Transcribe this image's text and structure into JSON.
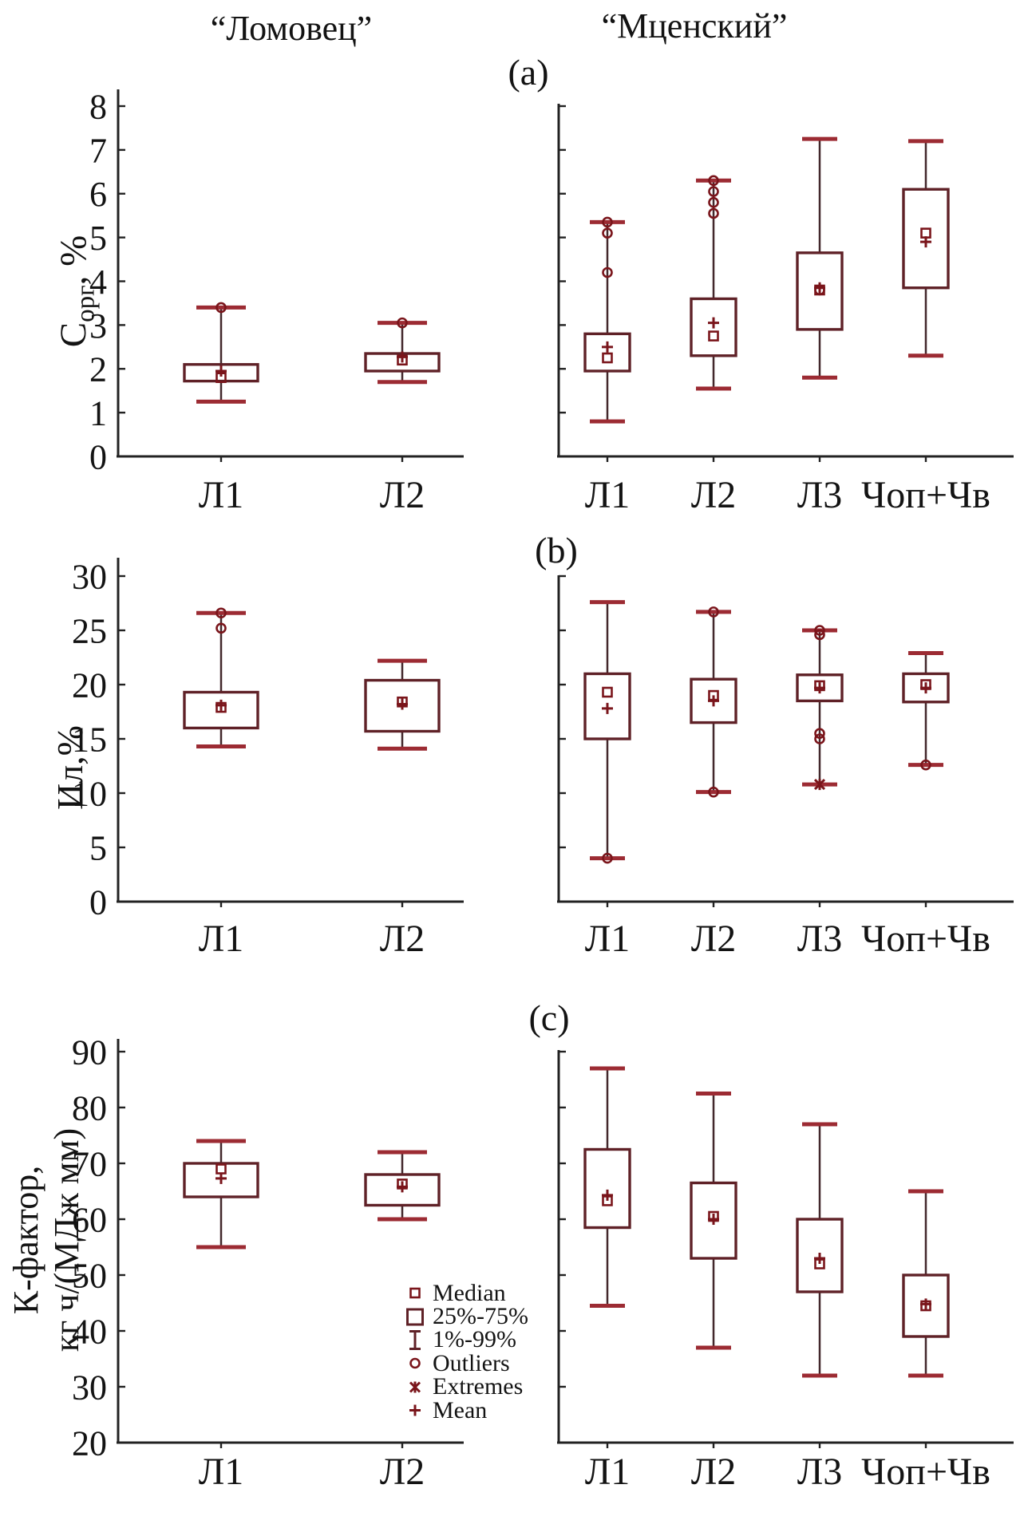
{
  "titles": {
    "left": "“Ломовец”",
    "right": "“Мценский”"
  },
  "colors": {
    "axis": "#222222",
    "text": "#131313",
    "box_outline": "#5f2127",
    "whisker": "#43282c",
    "cap": "#9c2b33",
    "marker": "#7a151b"
  },
  "legend": {
    "items": [
      {
        "marker": "median",
        "label": "Median"
      },
      {
        "marker": "box",
        "label": "25%-75%"
      },
      {
        "marker": "whisker",
        "label": "1%-99%"
      },
      {
        "marker": "outlier",
        "label": "Outliers"
      },
      {
        "marker": "extreme",
        "label": "Extremes"
      },
      {
        "marker": "mean",
        "label": "Mean"
      }
    ]
  },
  "chart_data": [
    {
      "panel": "a",
      "label": "(a)",
      "type": "box",
      "ylabel": {
        "prefix": "C",
        "sub": "орг",
        "suffix": ", %"
      },
      "ylim": [
        0,
        8
      ],
      "yticks": [
        0,
        1,
        2,
        3,
        4,
        5,
        6,
        7,
        8
      ],
      "groups": [
        {
          "name": "left",
          "farm": "Ломовец",
          "categories": [
            "Л1",
            "Л2"
          ],
          "boxes": [
            {
              "low": 1.25,
              "q1": 1.72,
              "median": 1.8,
              "mean": 1.95,
              "q3": 2.1,
              "high": 3.4,
              "outliers": [
                3.4
              ],
              "extremes": []
            },
            {
              "low": 1.7,
              "q1": 1.95,
              "median": 2.2,
              "mean": 2.27,
              "q3": 2.35,
              "high": 3.05,
              "outliers": [
                3.05
              ],
              "extremes": []
            }
          ]
        },
        {
          "name": "right",
          "farm": "Мценский",
          "categories": [
            "Л1",
            "Л2",
            "Л3",
            "Чоп+Чв"
          ],
          "boxes": [
            {
              "low": 0.8,
              "q1": 1.95,
              "median": 2.25,
              "mean": 2.5,
              "q3": 2.8,
              "high": 5.35,
              "outliers": [
                5.35,
                5.1,
                4.2
              ],
              "extremes": []
            },
            {
              "low": 1.55,
              "q1": 2.3,
              "median": 2.75,
              "mean": 3.05,
              "q3": 3.6,
              "high": 6.3,
              "outliers": [
                6.3,
                6.05,
                5.8,
                5.55
              ],
              "extremes": []
            },
            {
              "low": 1.8,
              "q1": 2.9,
              "median": 3.8,
              "mean": 3.85,
              "q3": 4.65,
              "high": 7.25,
              "outliers": [
                3.8
              ],
              "extremes": []
            },
            {
              "low": 2.3,
              "q1": 3.85,
              "median": 5.1,
              "mean": 4.9,
              "q3": 6.1,
              "high": 7.2,
              "outliers": [],
              "extremes": []
            }
          ]
        }
      ]
    },
    {
      "panel": "b",
      "label": "(b)",
      "type": "box",
      "ylabel": {
        "text": "Ил,%"
      },
      "ylim": [
        0,
        30
      ],
      "yticks": [
        0,
        5,
        10,
        15,
        20,
        25,
        30
      ],
      "groups": [
        {
          "name": "left",
          "farm": "Ломовец",
          "categories": [
            "Л1",
            "Л2"
          ],
          "boxes": [
            {
              "low": 14.3,
              "q1": 16.0,
              "median": 17.9,
              "mean": 18.1,
              "q3": 19.3,
              "high": 26.6,
              "outliers": [
                26.6,
                25.2
              ],
              "extremes": []
            },
            {
              "low": 14.1,
              "q1": 15.7,
              "median": 18.4,
              "mean": 18.2,
              "q3": 20.4,
              "high": 22.2,
              "outliers": [],
              "extremes": []
            }
          ]
        },
        {
          "name": "right",
          "farm": "Мценский",
          "categories": [
            "Л1",
            "Л2",
            "Л3",
            "Чоп+Чв"
          ],
          "boxes": [
            {
              "low": 4.0,
              "q1": 15.0,
              "median": 19.3,
              "mean": 17.8,
              "q3": 21.0,
              "high": 27.6,
              "outliers": [
                4.0
              ],
              "extremes": []
            },
            {
              "low": 10.1,
              "q1": 16.5,
              "median": 19.0,
              "mean": 18.5,
              "q3": 20.5,
              "high": 26.7,
              "outliers": [
                26.7,
                10.1
              ],
              "extremes": []
            },
            {
              "low": 10.8,
              "q1": 18.5,
              "median": 19.9,
              "mean": 19.7,
              "q3": 20.9,
              "high": 25.0,
              "outliers": [
                25.0,
                24.6,
                15.5,
                15.0
              ],
              "extremes": [
                10.8
              ]
            },
            {
              "low": 12.6,
              "q1": 18.4,
              "median": 20.0,
              "mean": 19.7,
              "q3": 21.0,
              "high": 22.9,
              "outliers": [
                12.6
              ],
              "extremes": []
            }
          ]
        }
      ]
    },
    {
      "panel": "c",
      "label": "(c)",
      "type": "box",
      "ylabel": {
        "line1": "К-фактор,",
        "line2": "кг ч/(МДж мм)"
      },
      "ylim": [
        20,
        90
      ],
      "yticks": [
        20,
        30,
        40,
        50,
        60,
        70,
        80,
        90
      ],
      "groups": [
        {
          "name": "left",
          "farm": "Ломовец",
          "categories": [
            "Л1",
            "Л2"
          ],
          "boxes": [
            {
              "low": 55,
              "q1": 64,
              "median": 69,
              "mean": 67.3,
              "q3": 70,
              "high": 74,
              "outliers": [],
              "extremes": []
            },
            {
              "low": 60,
              "q1": 62.5,
              "median": 66.3,
              "mean": 65.8,
              "q3": 68,
              "high": 72,
              "outliers": [],
              "extremes": []
            }
          ]
        },
        {
          "name": "right",
          "farm": "Мценский",
          "categories": [
            "Л1",
            "Л2",
            "Л3",
            "Чоп+Чв"
          ],
          "boxes": [
            {
              "low": 44.5,
              "q1": 58.5,
              "median": 63.3,
              "mean": 64.3,
              "q3": 72.5,
              "high": 87,
              "outliers": [],
              "extremes": []
            },
            {
              "low": 37,
              "q1": 53,
              "median": 60.5,
              "mean": 60,
              "q3": 66.5,
              "high": 82.5,
              "outliers": [],
              "extremes": []
            },
            {
              "low": 32,
              "q1": 47,
              "median": 52,
              "mean": 53,
              "q3": 60,
              "high": 77,
              "outliers": [],
              "extremes": []
            },
            {
              "low": 32,
              "q1": 39,
              "median": 44.5,
              "mean": 44.8,
              "q3": 50,
              "high": 65,
              "outliers": [],
              "extremes": []
            }
          ]
        }
      ]
    }
  ]
}
